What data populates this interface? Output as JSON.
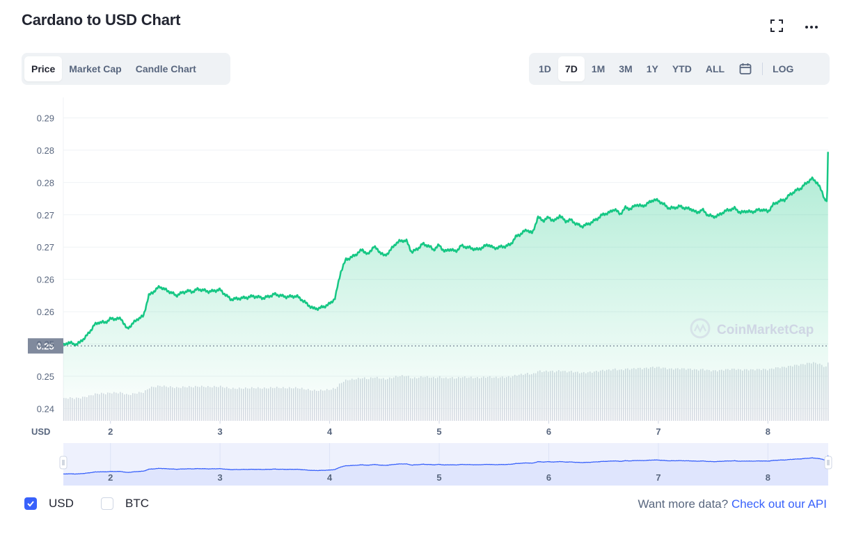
{
  "header": {
    "title": "Cardano to USD Chart",
    "fullscreen_icon": "fullscreen-icon",
    "more_icon": "more-horizontal-icon"
  },
  "chart_tabs": [
    {
      "label": "Price",
      "active": true
    },
    {
      "label": "Market Cap",
      "active": false
    },
    {
      "label": "Candle Chart",
      "active": false
    }
  ],
  "range_tabs": [
    {
      "label": "1D",
      "active": false
    },
    {
      "label": "7D",
      "active": true
    },
    {
      "label": "1M",
      "active": false
    },
    {
      "label": "3M",
      "active": false
    },
    {
      "label": "1Y",
      "active": false
    },
    {
      "label": "YTD",
      "active": false
    },
    {
      "label": "ALL",
      "active": false
    }
  ],
  "range_calendar_icon": "calendar-icon",
  "range_log_label": "LOG",
  "watermark": "CoinMarketCap",
  "colors": {
    "line": "#16c784",
    "navigator_line": "#3861fb",
    "accent": "#3861fb",
    "current_price_tag": "#808a9d"
  },
  "chart_data": {
    "type": "line",
    "title": "Cardano to USD Chart",
    "ylabel": "USD",
    "ylim": [
      0.241,
      0.29
    ],
    "xlim": [
      1.57,
      8.55
    ],
    "y_ticks": [
      "0.24",
      "0.25",
      "0.25",
      "0.26",
      "0.26",
      "0.27",
      "0.27",
      "0.28",
      "0.28",
      "0.29"
    ],
    "y_tick_values": [
      0.2429,
      0.2479,
      0.2529,
      0.2579,
      0.2629,
      0.2679,
      0.2729,
      0.2779,
      0.2829,
      0.2879
    ],
    "x_ticks": [
      "2",
      "3",
      "4",
      "5",
      "6",
      "7",
      "8"
    ],
    "x_tick_values": [
      2,
      3,
      4,
      5,
      6,
      7,
      8
    ],
    "current_price_label": "0.25",
    "current_price": 0.2526,
    "grid": true,
    "series": [
      {
        "x": [
          1.57,
          1.62,
          1.67,
          1.72,
          1.8,
          1.85,
          1.9,
          1.95,
          2.0,
          2.1,
          2.15,
          2.2,
          2.25,
          2.3,
          2.35,
          2.45,
          2.5,
          2.55,
          2.6,
          2.65,
          2.7,
          2.75,
          2.8,
          2.9,
          3.0,
          3.05,
          3.1,
          3.2,
          3.25,
          3.3,
          3.4,
          3.5,
          3.6,
          3.7,
          3.75,
          3.8,
          3.85,
          3.9,
          3.95,
          4.0,
          4.05,
          4.1,
          4.15,
          4.2,
          4.25,
          4.3,
          4.35,
          4.4,
          4.45,
          4.5,
          4.55,
          4.6,
          4.65,
          4.7,
          4.75,
          4.8,
          4.85,
          4.9,
          4.95,
          5.0,
          5.05,
          5.1,
          5.15,
          5.2,
          5.25,
          5.35,
          5.45,
          5.5,
          5.55,
          5.6,
          5.65,
          5.7,
          5.75,
          5.8,
          5.85,
          5.9,
          5.95,
          6.0,
          6.05,
          6.1,
          6.15,
          6.2,
          6.25,
          6.3,
          6.35,
          6.4,
          6.45,
          6.5,
          6.55,
          6.6,
          6.65,
          6.7,
          6.75,
          6.8,
          6.85,
          6.9,
          6.95,
          7.0,
          7.05,
          7.1,
          7.15,
          7.2,
          7.25,
          7.3,
          7.35,
          7.4,
          7.45,
          7.5,
          7.55,
          7.6,
          7.65,
          7.7,
          7.75,
          7.8,
          7.85,
          7.9,
          7.95,
          8.0,
          8.05,
          8.1,
          8.15,
          8.2,
          8.25,
          8.3,
          8.35,
          8.4,
          8.45,
          8.5,
          8.52,
          8.53,
          8.54,
          8.55
        ],
        "y": [
          0.2526,
          0.2532,
          0.2528,
          0.2531,
          0.2545,
          0.2558,
          0.2563,
          0.2562,
          0.2568,
          0.2568,
          0.2552,
          0.256,
          0.2568,
          0.2572,
          0.2604,
          0.2618,
          0.2613,
          0.2609,
          0.2604,
          0.2608,
          0.2611,
          0.261,
          0.2614,
          0.261,
          0.2613,
          0.2605,
          0.2598,
          0.26,
          0.2601,
          0.2603,
          0.26,
          0.2606,
          0.2602,
          0.2603,
          0.2597,
          0.259,
          0.2584,
          0.2584,
          0.2587,
          0.2591,
          0.26,
          0.264,
          0.266,
          0.2663,
          0.2669,
          0.2675,
          0.2667,
          0.268,
          0.2673,
          0.2665,
          0.2673,
          0.2684,
          0.2689,
          0.2689,
          0.2671,
          0.2676,
          0.2684,
          0.2681,
          0.2675,
          0.2682,
          0.2672,
          0.2676,
          0.2672,
          0.2681,
          0.2679,
          0.2675,
          0.2683,
          0.2677,
          0.2679,
          0.268,
          0.2683,
          0.2695,
          0.27,
          0.2706,
          0.27,
          0.2725,
          0.272,
          0.2725,
          0.2719,
          0.2728,
          0.2719,
          0.2721,
          0.2715,
          0.2711,
          0.2714,
          0.2718,
          0.2724,
          0.273,
          0.2732,
          0.2738,
          0.273,
          0.274,
          0.2738,
          0.2745,
          0.2742,
          0.2746,
          0.2752,
          0.2751,
          0.2745,
          0.2739,
          0.274,
          0.2742,
          0.2739,
          0.2738,
          0.2732,
          0.2737,
          0.2729,
          0.2726,
          0.2728,
          0.2734,
          0.2737,
          0.2739,
          0.2732,
          0.2735,
          0.2733,
          0.2736,
          0.2737,
          0.2734,
          0.2745,
          0.275,
          0.2752,
          0.276,
          0.2766,
          0.277,
          0.2778,
          0.2785,
          0.2779,
          0.2762,
          0.2752,
          0.2753,
          0.2748,
          0.2846
        ]
      }
    ]
  },
  "navigator": {
    "x_ticks": [
      "2",
      "3",
      "4",
      "5",
      "6",
      "7",
      "8"
    ]
  },
  "legend": {
    "usd_label": "USD",
    "usd_checked": true,
    "btc_label": "BTC",
    "btc_checked": false
  },
  "footer": {
    "prefix": "Want more data?",
    "link": "Check out our API"
  }
}
